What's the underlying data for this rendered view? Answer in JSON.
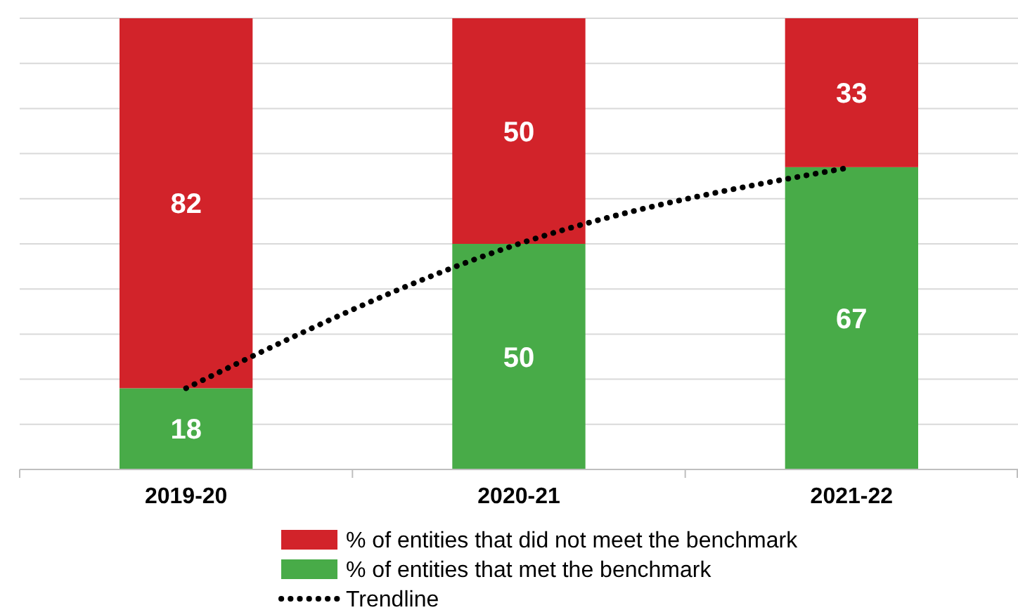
{
  "chart_data": {
    "type": "bar",
    "stacked": true,
    "categories": [
      "2019-20",
      "2020-21",
      "2021-22"
    ],
    "series": [
      {
        "name": "% of entities that met the benchmark",
        "color": "#48ab48",
        "values": [
          18,
          50,
          67
        ],
        "value_labels": [
          "18",
          "50",
          "67"
        ]
      },
      {
        "name": "% of entities that did not meet the benchmark",
        "color": "#d2232a",
        "values": [
          82,
          50,
          33
        ],
        "value_labels": [
          "82",
          "50",
          "33"
        ]
      },
      {
        "name": "Trendline",
        "type": "line",
        "color": "#000000",
        "line_style": "dotted",
        "values": [
          18,
          50,
          67
        ]
      }
    ],
    "ylim": [
      0,
      100
    ],
    "yticks": [
      {
        "value": 0,
        "label": null
      },
      {
        "value": 10,
        "label": null
      },
      {
        "value": 20,
        "label": null
      },
      {
        "value": 30,
        "label": null
      },
      {
        "value": 40,
        "label": null
      },
      {
        "value": 50,
        "label": null
      },
      {
        "value": 60,
        "label": null
      },
      {
        "value": 70,
        "label": null
      },
      {
        "value": 80,
        "label": null
      },
      {
        "value": 90,
        "label": null
      },
      {
        "value": 100,
        "label": null
      }
    ],
    "tick_labels": "x",
    "grid": "y",
    "legend": "bottom"
  }
}
